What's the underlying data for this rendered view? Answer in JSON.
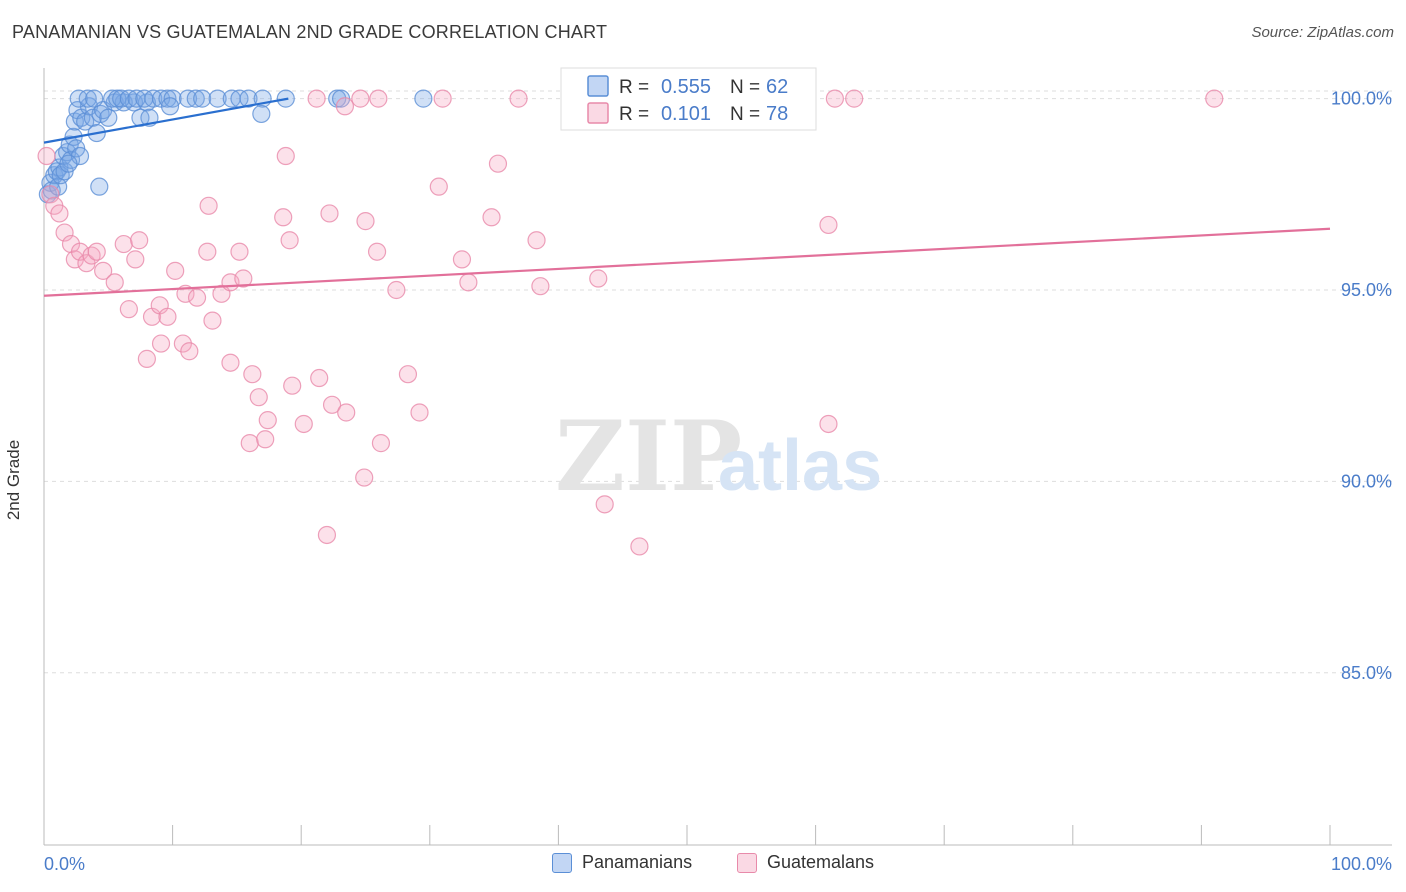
{
  "title": "PANAMANIAN VS GUATEMALAN 2ND GRADE CORRELATION CHART",
  "source": "Source: ZipAtlas.com",
  "watermark": {
    "zip": "ZIP",
    "atlas": "atlas"
  },
  "colors": {
    "blue": "#5b8fd6",
    "blue_fill": "rgba(120,165,230,0.35)",
    "blue_line": "#2a6fcf",
    "pink": "#e88aaa",
    "pink_fill": "rgba(245,170,195,0.35)",
    "pink_line": "#e2709a",
    "tick_label": "#4a7cc9",
    "grid": "#dddddd"
  },
  "legend": {
    "rows": [
      {
        "r_label": "R =",
        "r_value": "0.555",
        "n_label": "N =",
        "n_value": "62"
      },
      {
        "r_label": "R =",
        "r_value": "0.101",
        "n_label": "N =",
        "n_value": "78"
      }
    ]
  },
  "bottom_legend": [
    "Panamanians",
    "Guatemalans"
  ],
  "chart_data": {
    "type": "scatter",
    "title": "PANAMANIAN VS GUATEMALAN 2ND GRADE CORRELATION CHART",
    "xlabel": "",
    "ylabel": "2nd Grade",
    "xlim": [
      0,
      100
    ],
    "ylim": [
      80.5,
      100.8
    ],
    "x_tick_labels": [
      "0.0%",
      "100.0%"
    ],
    "y_ticks": [
      85,
      90,
      95,
      100
    ],
    "y_tick_labels": [
      "85.0%",
      "90.0%",
      "95.0%",
      "100.0%"
    ],
    "grid": true,
    "legend_position": "top-center",
    "series": [
      {
        "name": "Panamanians",
        "R": 0.555,
        "N": 62,
        "trend": {
          "x": [
            0,
            19
          ],
          "y": [
            98.85,
            100.0
          ]
        },
        "points": [
          [
            0.3,
            97.5
          ],
          [
            0.5,
            97.8
          ],
          [
            0.6,
            97.6
          ],
          [
            0.8,
            98.0
          ],
          [
            1.0,
            98.1
          ],
          [
            1.1,
            97.7
          ],
          [
            1.2,
            98.2
          ],
          [
            1.3,
            98.0
          ],
          [
            1.5,
            98.5
          ],
          [
            1.6,
            98.1
          ],
          [
            1.8,
            98.6
          ],
          [
            2.0,
            98.8
          ],
          [
            2.1,
            98.4
          ],
          [
            2.3,
            99.0
          ],
          [
            2.5,
            98.7
          ],
          [
            2.8,
            98.5
          ],
          [
            2.4,
            99.4
          ],
          [
            2.6,
            99.7
          ],
          [
            2.9,
            99.5
          ],
          [
            3.2,
            99.4
          ],
          [
            3.5,
            99.8
          ],
          [
            3.8,
            99.5
          ],
          [
            4.1,
            99.1
          ],
          [
            4.4,
            99.6
          ],
          [
            4.6,
            99.7
          ],
          [
            5.0,
            99.5
          ],
          [
            5.5,
            99.9
          ],
          [
            6.2,
            99.9
          ],
          [
            7.0,
            99.9
          ],
          [
            7.5,
            99.5
          ],
          [
            8.0,
            99.9
          ],
          [
            8.2,
            99.5
          ],
          [
            2.7,
            100.0
          ],
          [
            3.4,
            100.0
          ],
          [
            3.9,
            100.0
          ],
          [
            5.3,
            100.0
          ],
          [
            5.7,
            100.0
          ],
          [
            6.0,
            100.0
          ],
          [
            6.6,
            100.0
          ],
          [
            7.2,
            100.0
          ],
          [
            7.8,
            100.0
          ],
          [
            8.5,
            100.0
          ],
          [
            9.1,
            100.0
          ],
          [
            9.6,
            100.0
          ],
          [
            10.0,
            100.0
          ],
          [
            11.2,
            100.0
          ],
          [
            11.8,
            100.0
          ],
          [
            12.3,
            100.0
          ],
          [
            13.5,
            100.0
          ],
          [
            14.6,
            100.0
          ],
          [
            15.2,
            100.0
          ],
          [
            15.9,
            100.0
          ],
          [
            17.0,
            100.0
          ],
          [
            18.8,
            100.0
          ],
          [
            22.8,
            100.0
          ],
          [
            23.1,
            100.0
          ],
          [
            29.5,
            100.0
          ],
          [
            41.5,
            100.0
          ],
          [
            16.9,
            99.6
          ],
          [
            9.8,
            99.8
          ],
          [
            4.3,
            97.7
          ],
          [
            1.9,
            98.3
          ]
        ]
      },
      {
        "name": "Guatemalans",
        "R": 0.101,
        "N": 78,
        "trend": {
          "x": [
            0,
            100
          ],
          "y": [
            94.85,
            96.6
          ]
        },
        "points": [
          [
            0.2,
            98.5
          ],
          [
            0.5,
            97.5
          ],
          [
            0.8,
            97.2
          ],
          [
            1.2,
            97.0
          ],
          [
            1.6,
            96.5
          ],
          [
            2.1,
            96.2
          ],
          [
            2.4,
            95.8
          ],
          [
            2.8,
            96.0
          ],
          [
            3.3,
            95.7
          ],
          [
            3.7,
            95.9
          ],
          [
            4.1,
            96.0
          ],
          [
            4.6,
            95.5
          ],
          [
            5.5,
            95.2
          ],
          [
            6.2,
            96.2
          ],
          [
            7.1,
            95.8
          ],
          [
            7.4,
            96.3
          ],
          [
            6.6,
            94.5
          ],
          [
            8.4,
            94.3
          ],
          [
            9.0,
            94.6
          ],
          [
            9.6,
            94.3
          ],
          [
            10.2,
            95.5
          ],
          [
            11.0,
            94.9
          ],
          [
            11.9,
            94.8
          ],
          [
            13.1,
            94.2
          ],
          [
            13.8,
            94.9
          ],
          [
            14.5,
            95.2
          ],
          [
            15.5,
            95.3
          ],
          [
            12.8,
            97.2
          ],
          [
            12.7,
            96.0
          ],
          [
            15.2,
            96.0
          ],
          [
            18.6,
            96.9
          ],
          [
            19.1,
            96.3
          ],
          [
            22.2,
            97.0
          ],
          [
            25.0,
            96.8
          ],
          [
            25.9,
            96.0
          ],
          [
            27.4,
            95.0
          ],
          [
            30.7,
            97.7
          ],
          [
            32.5,
            95.8
          ],
          [
            33.0,
            95.2
          ],
          [
            34.8,
            96.9
          ],
          [
            35.3,
            98.3
          ],
          [
            38.3,
            96.3
          ],
          [
            38.6,
            95.1
          ],
          [
            43.1,
            95.3
          ],
          [
            18.8,
            98.5
          ],
          [
            9.1,
            93.6
          ],
          [
            8.0,
            93.2
          ],
          [
            10.8,
            93.6
          ],
          [
            11.3,
            93.4
          ],
          [
            14.5,
            93.1
          ],
          [
            16.2,
            92.8
          ],
          [
            16.7,
            92.2
          ],
          [
            17.4,
            91.6
          ],
          [
            16.0,
            91.0
          ],
          [
            17.2,
            91.1
          ],
          [
            19.3,
            92.5
          ],
          [
            20.2,
            91.5
          ],
          [
            21.4,
            92.7
          ],
          [
            22.4,
            92.0
          ],
          [
            23.5,
            91.8
          ],
          [
            24.9,
            90.1
          ],
          [
            26.2,
            91.0
          ],
          [
            28.3,
            92.8
          ],
          [
            29.2,
            91.8
          ],
          [
            22.0,
            88.6
          ],
          [
            43.6,
            89.4
          ],
          [
            46.3,
            88.3
          ],
          [
            61.0,
            96.7
          ],
          [
            61.5,
            100.0
          ],
          [
            63.0,
            100.0
          ],
          [
            91.0,
            100.0
          ],
          [
            21.2,
            100.0
          ],
          [
            23.4,
            99.8
          ],
          [
            24.6,
            100.0
          ],
          [
            26.0,
            100.0
          ],
          [
            31.0,
            100.0
          ],
          [
            36.9,
            100.0
          ],
          [
            61.0,
            91.5
          ]
        ]
      }
    ]
  }
}
